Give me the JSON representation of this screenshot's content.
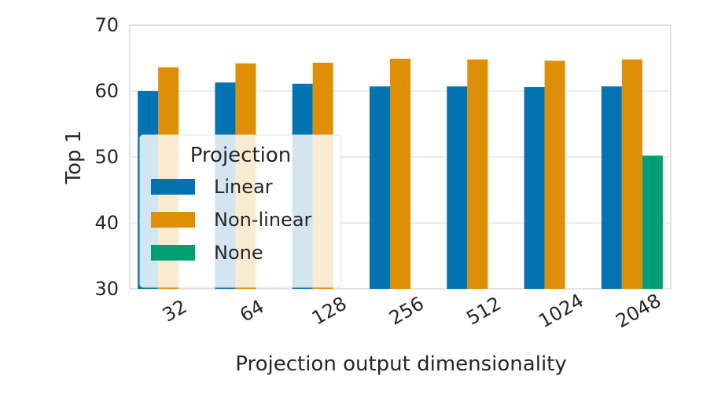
{
  "chart_data": {
    "type": "bar",
    "categories": [
      "32",
      "64",
      "128",
      "256",
      "512",
      "1024",
      "2048"
    ],
    "series": [
      {
        "name": "Linear",
        "color": "#0173b2",
        "values": [
          60.0,
          61.3,
          61.1,
          60.7,
          60.7,
          60.6,
          60.7
        ]
      },
      {
        "name": "Non-linear",
        "color": "#de8f05",
        "values": [
          63.6,
          64.2,
          64.3,
          64.9,
          64.8,
          64.6,
          64.8
        ]
      },
      {
        "name": "None",
        "color": "#029e73",
        "values": [
          null,
          null,
          null,
          null,
          null,
          null,
          50.2
        ]
      }
    ],
    "xlabel": "Projection output dimensionality",
    "ylabel": "Top 1",
    "ylim": [
      30,
      70
    ],
    "yticks": [
      "30",
      "40",
      "50",
      "60",
      "70"
    ],
    "grid": true,
    "legend": {
      "title": "Projection",
      "placement": "center-left"
    }
  }
}
